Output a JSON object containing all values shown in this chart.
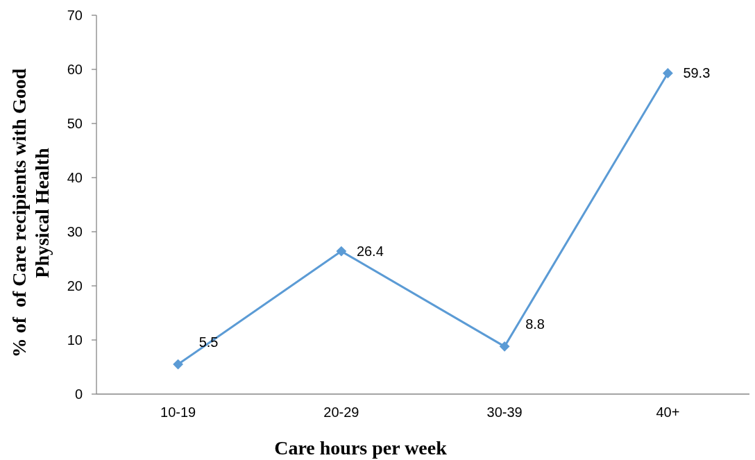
{
  "chart_data": {
    "type": "line",
    "xlabel": "Care hours per week",
    "ylabel": "% of  of Care recipients with Good Physical Health",
    "categories": [
      "10-19",
      "20-29",
      "30-39",
      "40+"
    ],
    "series": [
      {
        "color": "#5b9bd5",
        "values": [
          5.5,
          26.4,
          8.8,
          59.3
        ]
      }
    ],
    "ylim": [
      0,
      70
    ],
    "yticks": [
      0,
      10,
      20,
      30,
      40,
      50,
      60,
      70
    ],
    "data_labels": true,
    "marker": "diamond",
    "line_style": "solid",
    "grid": false
  }
}
